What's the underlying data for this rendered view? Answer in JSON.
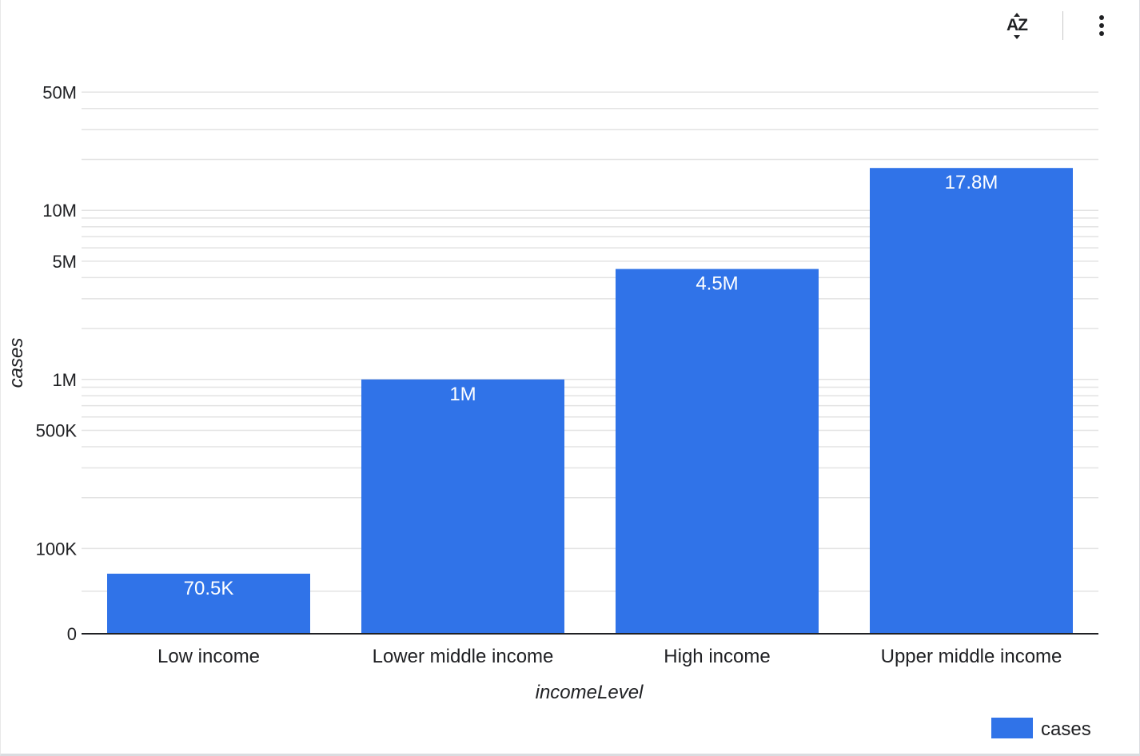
{
  "toolbar": {
    "sort_icon": "sort-az-icon",
    "sort_label": "AZ",
    "more_icon": "more-vert-icon"
  },
  "chart_data": {
    "type": "bar",
    "scale": "log",
    "categories": [
      "Low income",
      "Lower middle income",
      "High income",
      "Upper middle income"
    ],
    "series": [
      {
        "name": "cases",
        "values": [
          70500,
          1000000,
          4500000,
          17800000
        ],
        "labels": [
          "70.5K",
          "1M",
          "4.5M",
          "17.8M"
        ],
        "color": "#3073e8"
      }
    ],
    "xlabel": "incomeLevel",
    "ylabel": "cases",
    "ylim": [
      0,
      50000000
    ],
    "yticks": [
      {
        "value": 0,
        "label": "0"
      },
      {
        "value": 100000,
        "label": "100K"
      },
      {
        "value": 500000,
        "label": "500K"
      },
      {
        "value": 1000000,
        "label": "1M"
      },
      {
        "value": 5000000,
        "label": "5M"
      },
      {
        "value": 10000000,
        "label": "10M"
      },
      {
        "value": 50000000,
        "label": "50M"
      }
    ],
    "grid": true,
    "legend": {
      "position": "bottom-right",
      "entries": [
        "cases"
      ]
    }
  }
}
